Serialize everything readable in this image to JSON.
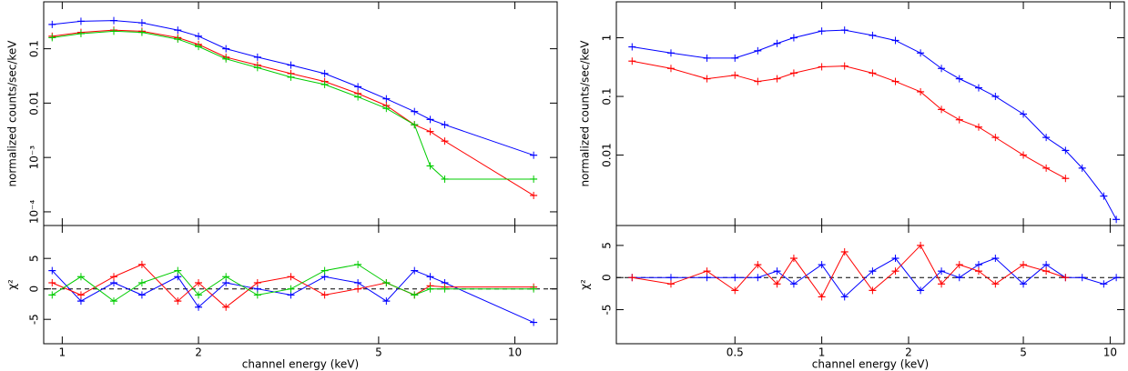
{
  "chart_data": [
    {
      "type": "line",
      "xscale": "log",
      "yscale": "log",
      "ylabel": "normalized counts/sec/keV",
      "xlim": [
        0.91,
        12.4
      ],
      "xticks": [
        1,
        2,
        5,
        10
      ],
      "ylim": [
        5.6e-05,
        0.73
      ],
      "yticks": [
        {
          "value": 0.0001,
          "label": "10⁻⁴"
        },
        {
          "value": 0.001,
          "label": "10⁻³"
        },
        0.01,
        0.1
      ],
      "x": [
        0.95,
        1.1,
        1.3,
        1.5,
        1.8,
        2.0,
        2.3,
        2.7,
        3.2,
        3.8,
        4.5,
        5.2,
        6.0,
        6.5,
        7.0,
        11
      ],
      "series": [
        {
          "color": "#0000ff",
          "values": [
            0.28,
            0.32,
            0.33,
            0.3,
            0.22,
            0.17,
            0.1,
            0.07,
            0.05,
            0.035,
            0.02,
            0.012,
            0.007,
            0.005,
            0.004,
            0.0011
          ]
        },
        {
          "color": "#ff0000",
          "values": [
            0.17,
            0.2,
            0.22,
            0.21,
            0.16,
            0.12,
            0.07,
            0.05,
            0.035,
            0.025,
            0.015,
            0.009,
            0.004,
            0.003,
            0.002,
            0.0002
          ]
        },
        {
          "color": "#00cc00",
          "values": [
            0.16,
            0.19,
            0.21,
            0.2,
            0.15,
            0.11,
            0.065,
            0.045,
            0.03,
            0.022,
            0.013,
            0.008,
            0.004,
            0.0007,
            0.0004,
            0.0004
          ]
        }
      ]
    },
    {
      "type": "line",
      "xscale": "log",
      "yscale": "linear",
      "ylabel": "χ²",
      "xlabel": "channel energy (keV)",
      "xlim": [
        0.91,
        12.4
      ],
      "xticks": [
        1,
        2,
        5,
        10
      ],
      "ylim": [
        -9,
        10.4
      ],
      "yticks": [
        -5,
        0,
        5
      ],
      "x": [
        0.95,
        1.1,
        1.3,
        1.5,
        1.8,
        2.0,
        2.3,
        2.7,
        3.2,
        3.8,
        4.5,
        5.2,
        6.0,
        6.5,
        7.0,
        11
      ],
      "series": [
        {
          "color": "#0000ff",
          "values": [
            3,
            -2,
            1,
            -1,
            2,
            -3,
            1,
            0,
            -1,
            2,
            1,
            -2,
            3,
            2,
            1,
            -5.5
          ]
        },
        {
          "color": "#ff0000",
          "values": [
            1,
            -1,
            2,
            4,
            -2,
            1,
            -3,
            1,
            2,
            -1,
            0,
            1,
            -1,
            0.5,
            0.3,
            0.3
          ]
        },
        {
          "color": "#00cc00",
          "values": [
            -1,
            2,
            -2,
            1,
            3,
            -1,
            2,
            -1,
            0,
            3,
            4,
            1,
            -1,
            0,
            0,
            0
          ]
        }
      ]
    },
    {
      "type": "line",
      "xscale": "log",
      "yscale": "log",
      "ylabel": "normalized counts/sec/keV",
      "xlim": [
        0.194,
        11.2
      ],
      "xticks": [
        0.5,
        1,
        2,
        5,
        10
      ],
      "ylim": [
        0.00063,
        4.1
      ],
      "yticks": [
        0.01,
        0.1,
        1
      ],
      "x": [
        0.22,
        0.3,
        0.4,
        0.5,
        0.6,
        0.7,
        0.8,
        1.0,
        1.2,
        1.5,
        1.8,
        2.2,
        2.6,
        3.0,
        3.5,
        4.0,
        5.0,
        6.0,
        7.0,
        8.0,
        9.5,
        10.5
      ],
      "series": [
        {
          "color": "#0000ff",
          "values": [
            0.7,
            0.55,
            0.45,
            0.45,
            0.6,
            0.8,
            1.0,
            1.3,
            1.35,
            1.1,
            0.9,
            0.55,
            0.3,
            0.2,
            0.14,
            0.1,
            0.05,
            0.02,
            0.012,
            0.006,
            0.002,
            0.0008
          ]
        },
        {
          "color": "#ff0000",
          "values": [
            0.4,
            0.3,
            0.2,
            0.23,
            0.18,
            0.2,
            0.25,
            0.32,
            0.33,
            0.25,
            0.18,
            0.12,
            0.06,
            0.04,
            0.03,
            0.02,
            0.01,
            0.006,
            0.004,
            null,
            null,
            null
          ]
        }
      ]
    },
    {
      "type": "line",
      "xscale": "log",
      "yscale": "linear",
      "ylabel": "χ²",
      "xlabel": "channel energy (keV)",
      "xlim": [
        0.194,
        11.2
      ],
      "xticks": [
        0.5,
        1,
        2,
        5,
        10
      ],
      "ylim": [
        -10.3,
        8.1
      ],
      "yticks": [
        -5,
        0,
        5
      ],
      "x": [
        0.22,
        0.3,
        0.4,
        0.5,
        0.6,
        0.7,
        0.8,
        1.0,
        1.2,
        1.5,
        1.8,
        2.2,
        2.6,
        3.0,
        3.5,
        4.0,
        5.0,
        6.0,
        7.0,
        8.0,
        9.5,
        10.5
      ],
      "series": [
        {
          "color": "#0000ff",
          "values": [
            0,
            0,
            0,
            0,
            0,
            1,
            -1,
            2,
            -3,
            1,
            3,
            -2,
            1,
            0,
            2,
            3,
            -1,
            2,
            0,
            0,
            -1,
            0
          ]
        },
        {
          "color": "#ff0000",
          "values": [
            0,
            -1,
            1,
            -2,
            2,
            -1,
            3,
            -3,
            4,
            -2,
            1,
            5,
            -1,
            2,
            1,
            -1,
            2,
            1,
            0,
            null,
            null,
            null
          ]
        }
      ]
    }
  ]
}
